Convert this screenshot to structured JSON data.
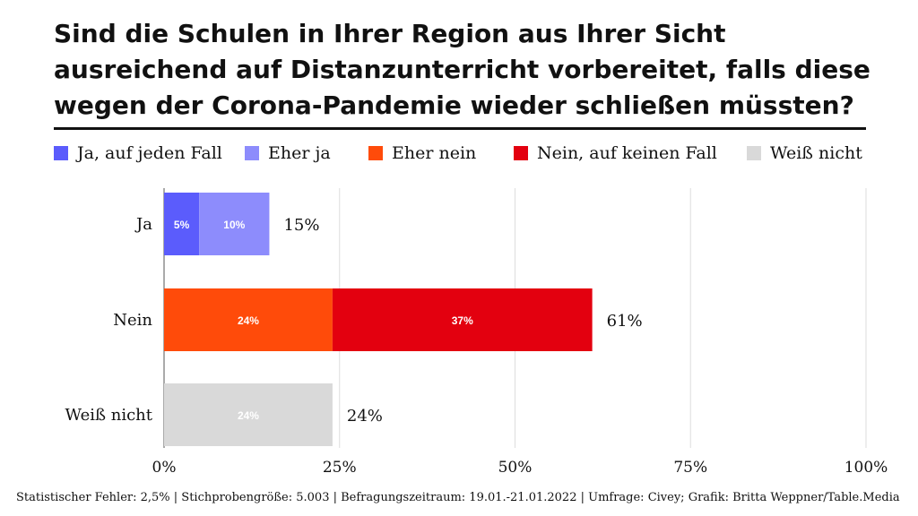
{
  "chart_data": {
    "type": "bar",
    "orientation": "horizontal",
    "stacked": true,
    "title": "Sind die Schulen in Ihrer Region aus Ihrer Sicht ausreichend auf Distanzunterricht vorbereitet, falls diese wegen der Corona-Pandemie wieder schließen müssten?",
    "legend": [
      {
        "name": "Ja, auf jeden Fall",
        "color": "#5b5cfc"
      },
      {
        "name": "Eher ja",
        "color": "#8d8cfc"
      },
      {
        "name": "Eher nein",
        "color": "#ff4b0a"
      },
      {
        "name": "Nein, auf keinen Fall",
        "color": "#e3000f"
      },
      {
        "name": "Weiß nicht",
        "color": "#d9d9d9"
      }
    ],
    "categories": [
      "Ja",
      "Nein",
      "Weiß nicht"
    ],
    "rows": [
      {
        "category": "Ja",
        "total": 15,
        "total_label": "15%",
        "segments": [
          {
            "series": "Ja, auf jeden Fall",
            "value": 5,
            "label": "5%",
            "color": "#5b5cfc"
          },
          {
            "series": "Eher ja",
            "value": 10,
            "label": "10%",
            "color": "#8d8cfc"
          }
        ]
      },
      {
        "category": "Nein",
        "total": 61,
        "total_label": "61%",
        "segments": [
          {
            "series": "Eher nein",
            "value": 24,
            "label": "24%",
            "color": "#ff4b0a"
          },
          {
            "series": "Nein, auf keinen Fall",
            "value": 37,
            "label": "37%",
            "color": "#e3000f"
          }
        ]
      },
      {
        "category": "Weiß nicht",
        "total": 24,
        "total_label": "24%",
        "segments": [
          {
            "series": "Weiß nicht",
            "value": 24,
            "label": "24%",
            "color": "#d9d9d9"
          }
        ]
      }
    ],
    "x_ticks": [
      {
        "value": 0,
        "label": "0%"
      },
      {
        "value": 25,
        "label": "25%"
      },
      {
        "value": 50,
        "label": "50%"
      },
      {
        "value": 75,
        "label": "75%"
      },
      {
        "value": 100,
        "label": "100%"
      }
    ],
    "xlim": [
      0,
      100
    ],
    "grid": true
  },
  "footer": "Statistischer Fehler: 2,5% | Stichprobengröße: 5.003 | Befragungszeitraum: 19.01.-21.01.2022  | Umfrage: Civey; Grafik: Britta Weppner/Table.Media"
}
